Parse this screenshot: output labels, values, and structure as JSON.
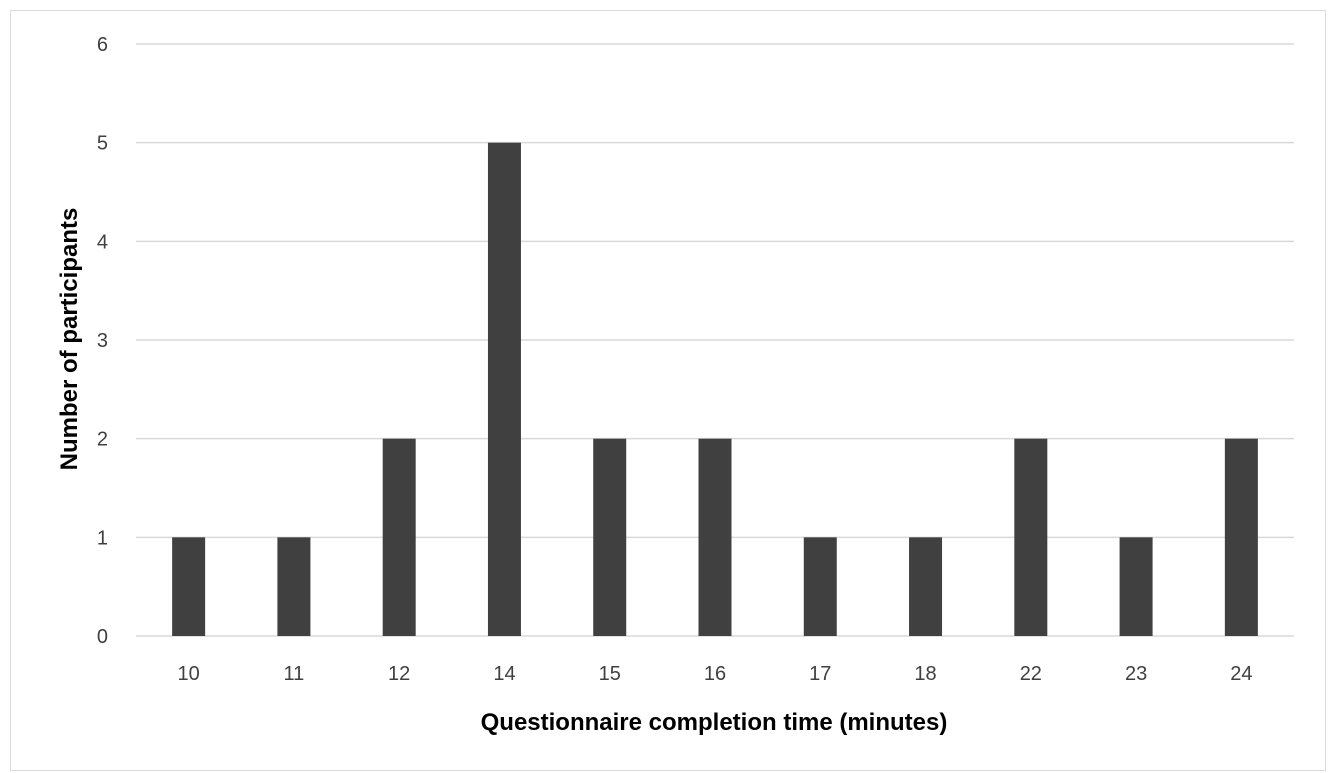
{
  "chart_data": {
    "type": "bar",
    "title": "",
    "xlabel": "Questionnaire completion time (minutes)",
    "ylabel": "Number of participants",
    "categories": [
      "10",
      "11",
      "12",
      "14",
      "15",
      "16",
      "17",
      "18",
      "22",
      "23",
      "24"
    ],
    "values": [
      1,
      1,
      2,
      5,
      2,
      2,
      1,
      1,
      2,
      1,
      2
    ],
    "ylim": [
      0,
      6
    ],
    "yticks": [
      "0",
      "1",
      "2",
      "3",
      "4",
      "5",
      "6"
    ],
    "grid": true,
    "legend": "none",
    "bar_color": "#404040",
    "grid_color": "#d9d9d9"
  }
}
